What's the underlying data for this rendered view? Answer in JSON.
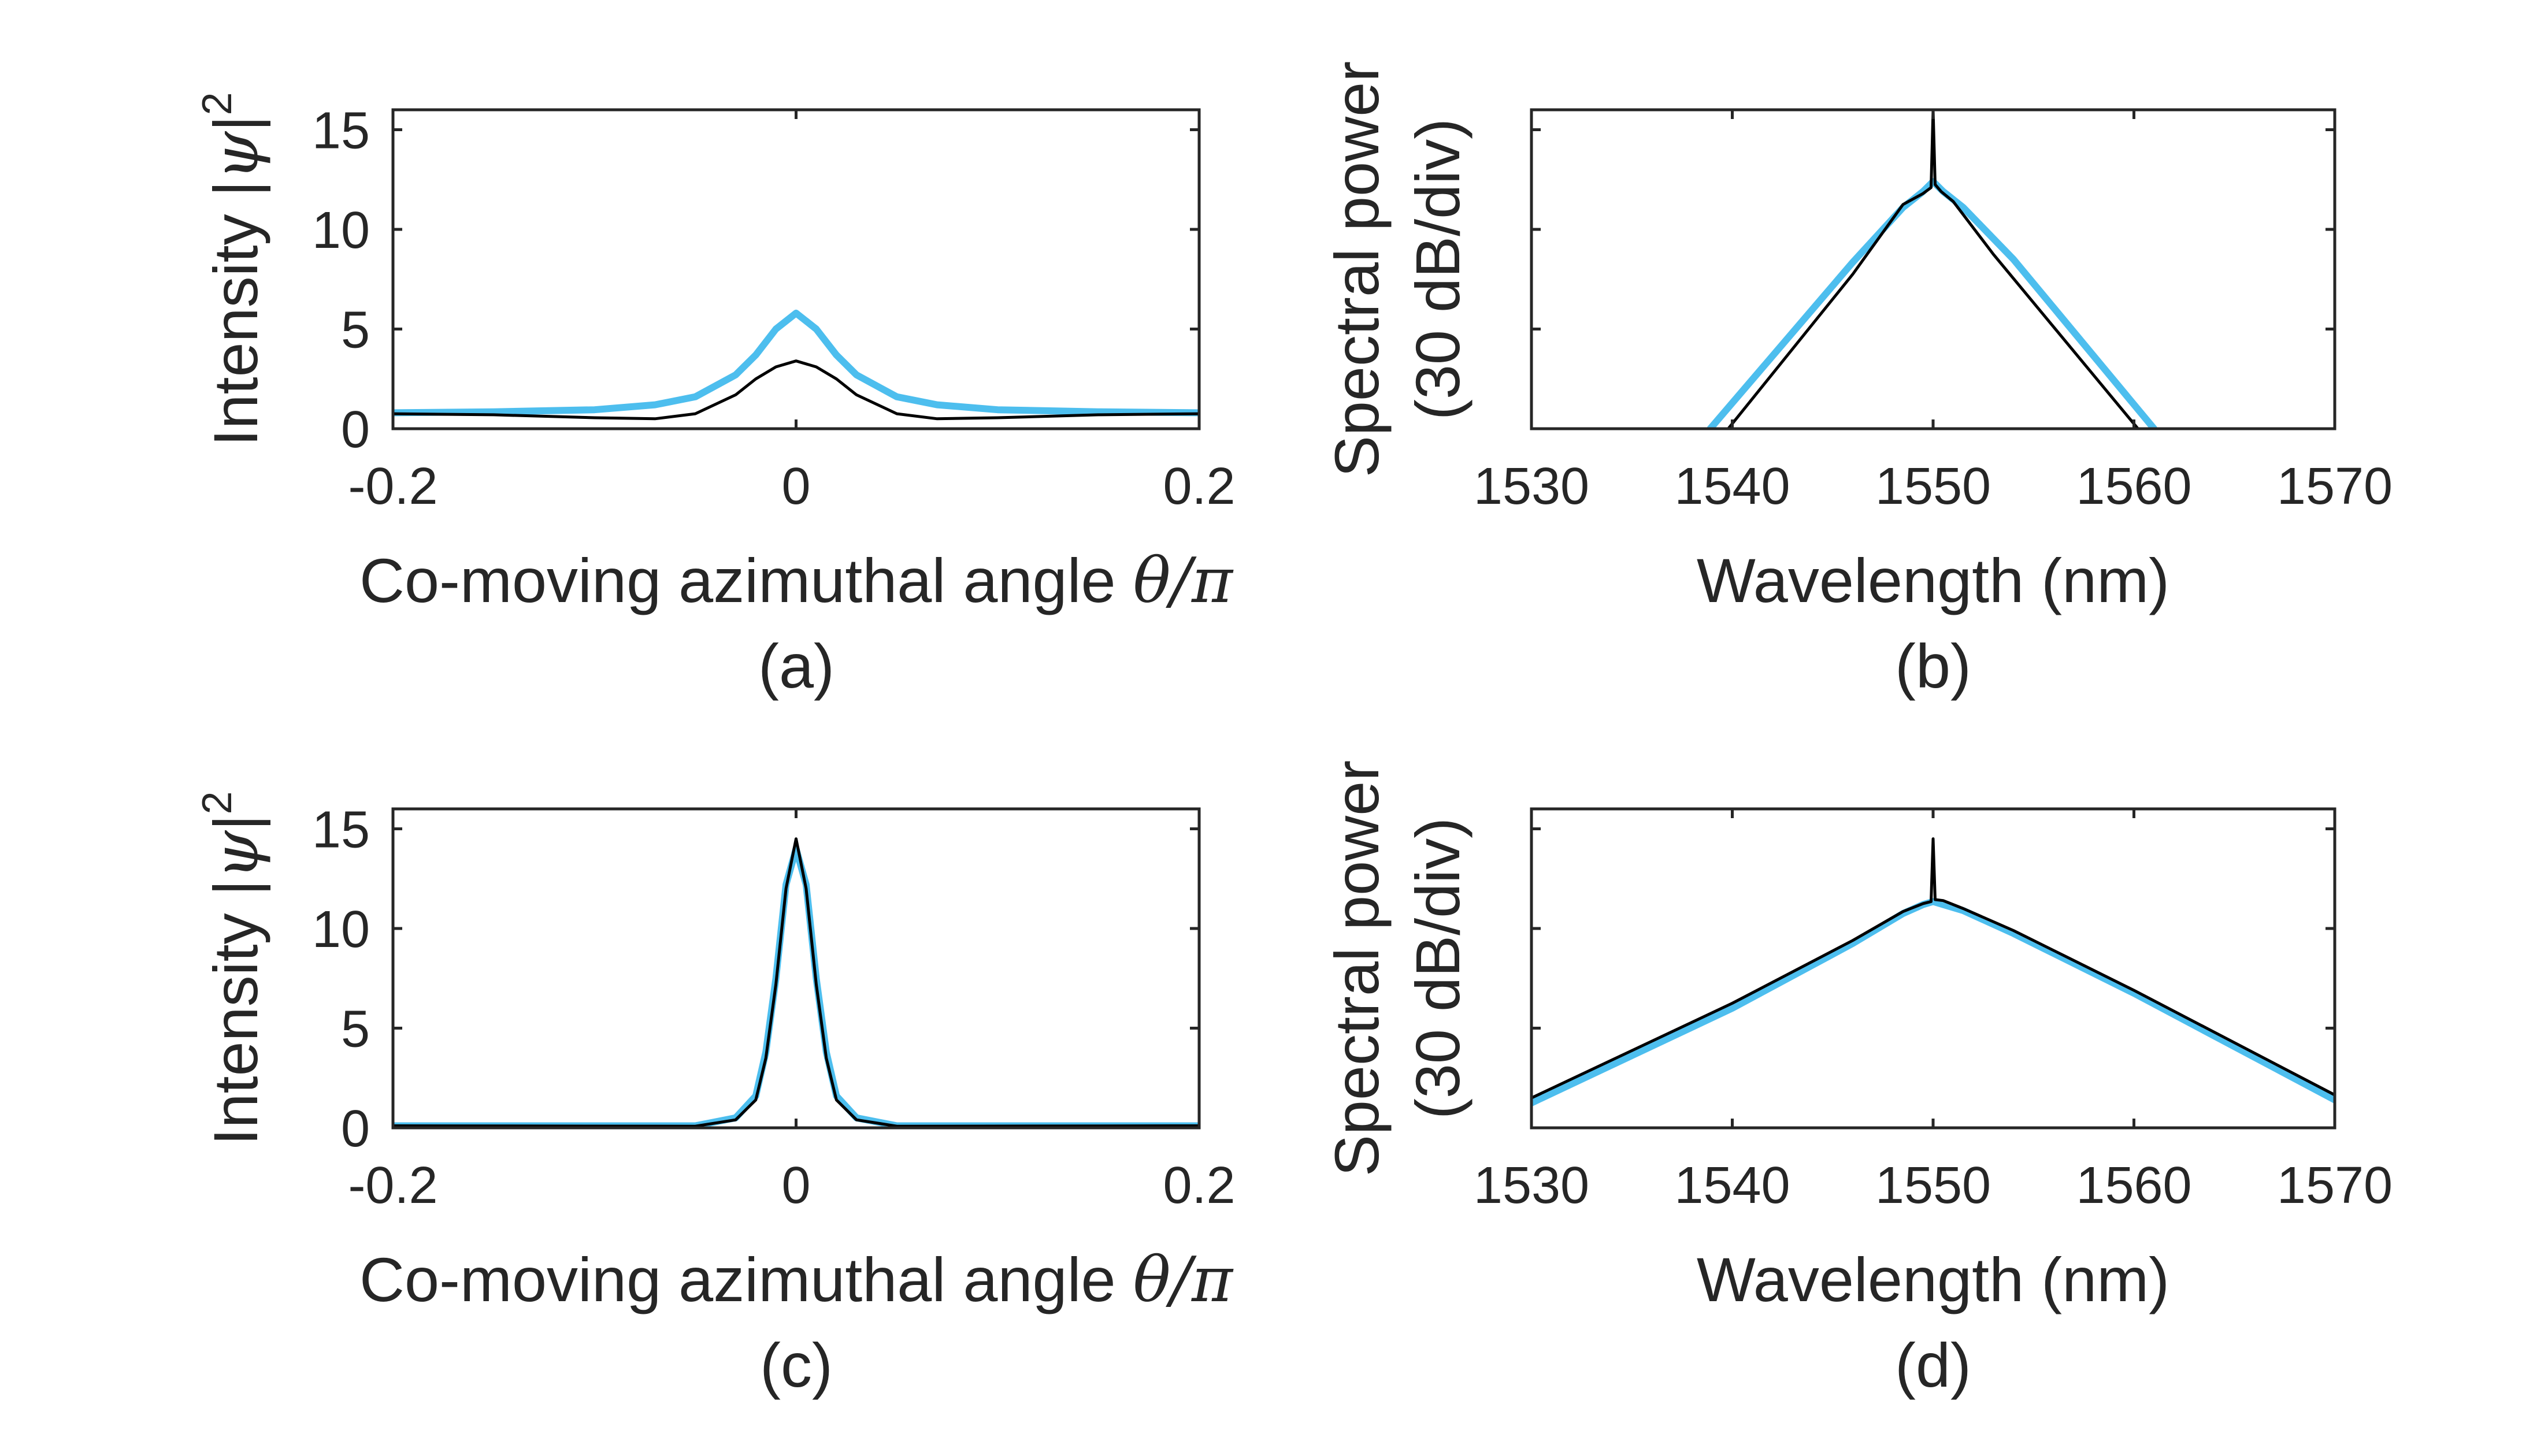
{
  "colors": {
    "blue": "#4DBEEE",
    "black": "#000000",
    "axis": "#262626"
  },
  "chart_data": [
    {
      "id": "a",
      "type": "line",
      "panel_label": "(a)",
      "xlabel": "Co-moving azimuthal angle θ/π",
      "xlabel_main": "Co-moving azimuthal angle ",
      "xlabel_math": "θ/π",
      "ylabel": "Intensity |ψ|²",
      "ylabel_main": "Intensity |",
      "ylabel_psi": "ψ",
      "ylabel_close": "|",
      "ylabel_sup": "2",
      "xlim": [
        -0.2,
        0.2
      ],
      "ylim": [
        0,
        16
      ],
      "xticks": [
        -0.2,
        0,
        0.2
      ],
      "xtick_labels": [
        "-0.2",
        "0",
        "0.2"
      ],
      "yticks": [
        0,
        5,
        10,
        15
      ],
      "ytick_labels": [
        "0",
        "5",
        "10",
        "15"
      ],
      "series": [
        {
          "color": "blue",
          "x": [
            -0.2,
            -0.15,
            -0.1,
            -0.07,
            -0.05,
            -0.03,
            -0.02,
            -0.01,
            0,
            0.01,
            0.02,
            0.03,
            0.05,
            0.07,
            0.1,
            0.15,
            0.2
          ],
          "y": [
            0.8,
            0.85,
            0.95,
            1.2,
            1.6,
            2.7,
            3.7,
            5.0,
            5.8,
            5.0,
            3.7,
            2.7,
            1.6,
            1.2,
            0.95,
            0.85,
            0.8
          ]
        },
        {
          "color": "black",
          "x": [
            -0.2,
            -0.15,
            -0.1,
            -0.07,
            -0.05,
            -0.03,
            -0.02,
            -0.01,
            0,
            0.01,
            0.02,
            0.03,
            0.05,
            0.07,
            0.1,
            0.15,
            0.2
          ],
          "y": [
            0.75,
            0.7,
            0.55,
            0.5,
            0.75,
            1.7,
            2.5,
            3.1,
            3.4,
            3.1,
            2.5,
            1.7,
            0.75,
            0.5,
            0.55,
            0.7,
            0.75
          ]
        }
      ]
    },
    {
      "id": "b",
      "type": "line",
      "panel_label": "(b)",
      "xlabel": "Wavelength (nm)",
      "ylabel": "Spectral power",
      "ylabel2": "(30 dB/div)",
      "xlim": [
        1530,
        1570
      ],
      "ylim": [
        0,
        3.2
      ],
      "xticks": [
        1530,
        1540,
        1550,
        1560,
        1570
      ],
      "xtick_labels": [
        "1530",
        "1540",
        "1550",
        "1560",
        "1570"
      ],
      "yticks": [
        1,
        2,
        3
      ],
      "series": [
        {
          "color": "blue",
          "x": [
            1538.9,
            1546,
            1548.5,
            1549.5,
            1550,
            1550.5,
            1551.5,
            1554,
            1561
          ],
          "y": [
            0,
            1.67,
            2.22,
            2.38,
            2.48,
            2.38,
            2.22,
            1.7,
            0
          ]
        },
        {
          "color": "black",
          "x": [
            1539.8,
            1546,
            1548.5,
            1549.5,
            1549.9,
            1550,
            1550.1,
            1550.4,
            1551,
            1553,
            1560.2
          ],
          "y": [
            0,
            1.55,
            2.25,
            2.36,
            2.42,
            3.2,
            2.45,
            2.38,
            2.28,
            1.75,
            0
          ]
        }
      ]
    },
    {
      "id": "c",
      "type": "line",
      "panel_label": "(c)",
      "xlabel": "Co-moving azimuthal angle θ/π",
      "xlabel_main": "Co-moving azimuthal angle ",
      "xlabel_math": "θ/π",
      "ylabel": "Intensity |ψ|²",
      "ylabel_main": "Intensity |",
      "ylabel_psi": "ψ",
      "ylabel_close": "|",
      "ylabel_sup": "2",
      "xlim": [
        -0.2,
        0.2
      ],
      "ylim": [
        0,
        16
      ],
      "xticks": [
        -0.2,
        0,
        0.2
      ],
      "xtick_labels": [
        "-0.2",
        "0",
        "0.2"
      ],
      "yticks": [
        0,
        5,
        10,
        15
      ],
      "ytick_labels": [
        "0",
        "5",
        "10",
        "15"
      ],
      "series": [
        {
          "color": "blue",
          "x": [
            -0.2,
            -0.05,
            -0.03,
            -0.02,
            -0.015,
            -0.01,
            -0.005,
            0,
            0.005,
            0.01,
            0.015,
            0.02,
            0.03,
            0.05,
            0.2
          ],
          "y": [
            0.1,
            0.1,
            0.5,
            1.6,
            3.8,
            7.5,
            12.2,
            14.0,
            12.2,
            7.5,
            3.8,
            1.6,
            0.5,
            0.1,
            0.1
          ]
        },
        {
          "color": "black",
          "x": [
            -0.2,
            -0.05,
            -0.03,
            -0.02,
            -0.015,
            -0.01,
            -0.005,
            0,
            0.005,
            0.01,
            0.015,
            0.02,
            0.03,
            0.05,
            0.2
          ],
          "y": [
            0.1,
            0.08,
            0.4,
            1.4,
            3.5,
            7.2,
            12.0,
            14.5,
            12.0,
            7.2,
            3.5,
            1.4,
            0.4,
            0.08,
            0.1
          ]
        }
      ]
    },
    {
      "id": "d",
      "type": "line",
      "panel_label": "(d)",
      "xlabel": "Wavelength (nm)",
      "ylabel": "Spectral power",
      "ylabel2": "(30 dB/div)",
      "xlim": [
        1530,
        1570
      ],
      "ylim": [
        0,
        3.2
      ],
      "xticks": [
        1530,
        1540,
        1550,
        1560,
        1570
      ],
      "xtick_labels": [
        "1530",
        "1540",
        "1550",
        "1560",
        "1570"
      ],
      "yticks": [
        1,
        2,
        3
      ],
      "series": [
        {
          "color": "blue",
          "x": [
            1530,
            1540,
            1546,
            1548.5,
            1549.5,
            1550,
            1550.5,
            1551.5,
            1554,
            1560,
            1570
          ],
          "y": [
            0.25,
            1.2,
            1.85,
            2.15,
            2.24,
            2.27,
            2.24,
            2.18,
            1.95,
            1.35,
            0.28
          ]
        },
        {
          "color": "black",
          "x": [
            1530,
            1540,
            1546,
            1548.5,
            1549.5,
            1549.9,
            1550,
            1550.1,
            1550.5,
            1551.5,
            1554,
            1560,
            1570
          ],
          "y": [
            0.3,
            1.25,
            1.88,
            2.17,
            2.25,
            2.27,
            2.9,
            2.29,
            2.28,
            2.2,
            1.98,
            1.38,
            0.33
          ]
        }
      ]
    }
  ]
}
